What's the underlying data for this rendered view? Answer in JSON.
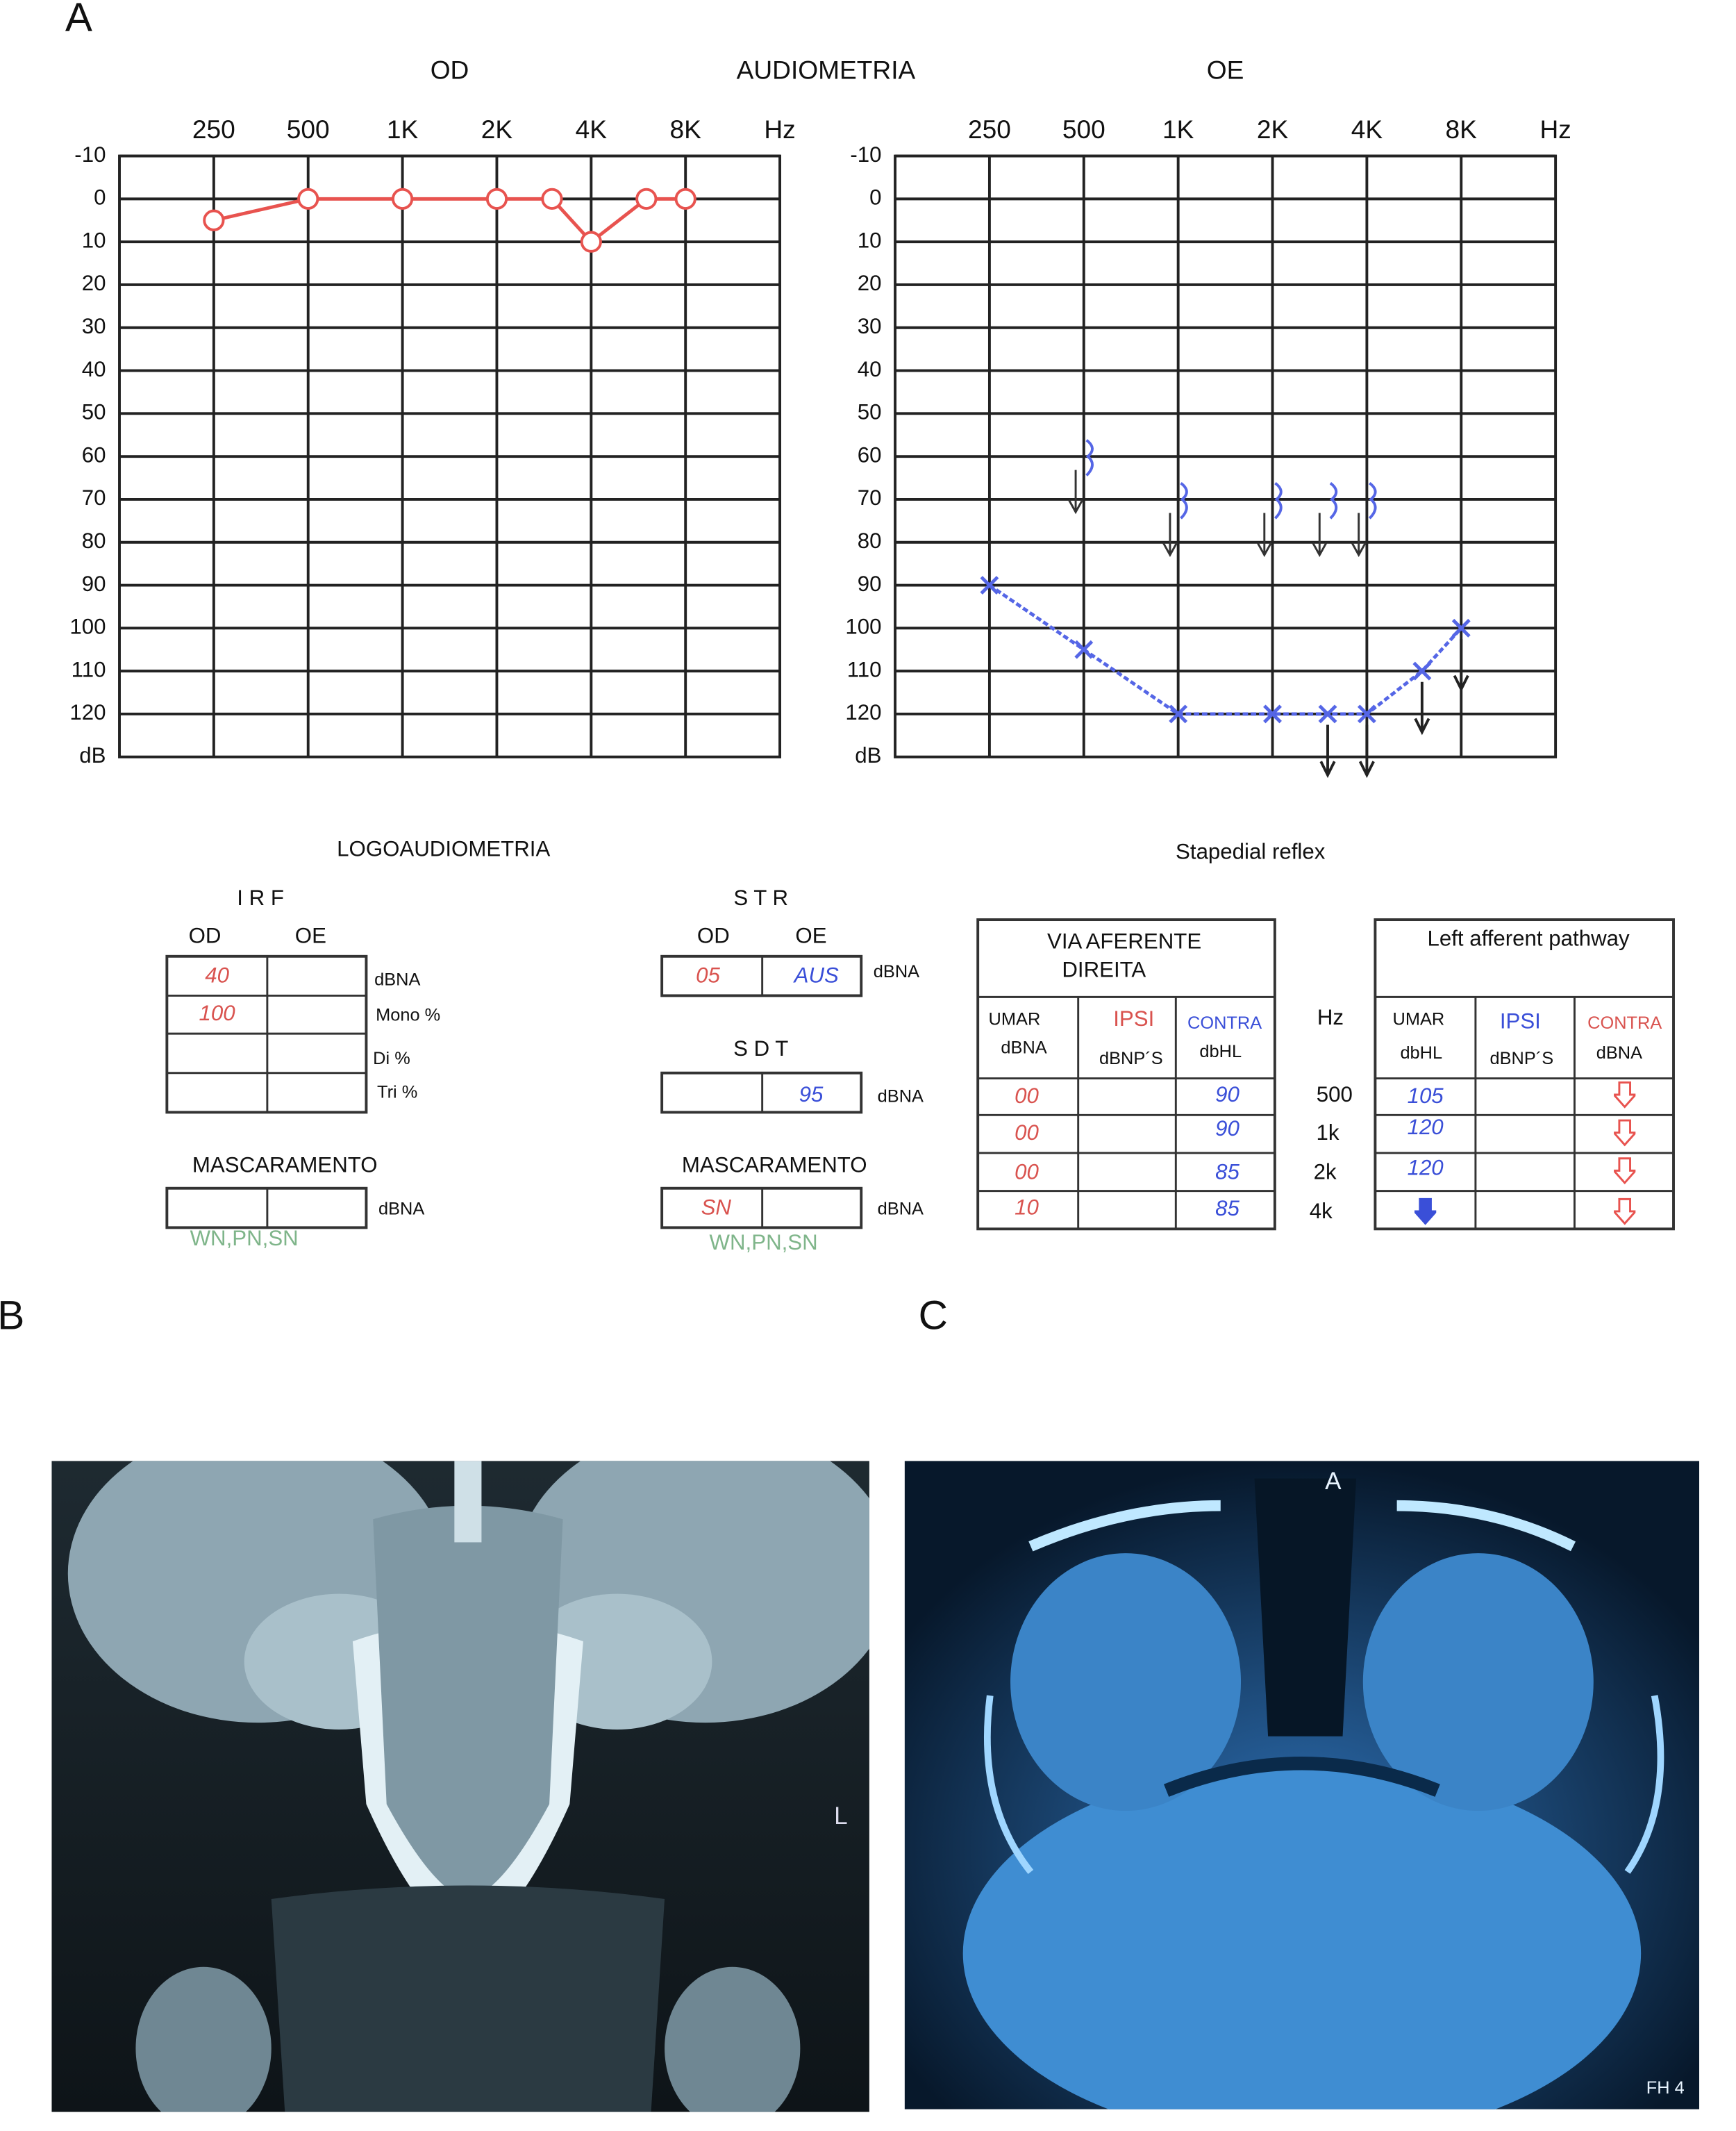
{
  "figure_labels": {
    "a": "A",
    "b": "B",
    "c": "C"
  },
  "title": "AUDIOMETRIA",
  "chart_data": [
    {
      "type": "line",
      "title": "OD",
      "x_label": "Hz",
      "y_label": "dB",
      "x_log": true,
      "x": [
        250,
        500,
        1000,
        2000,
        3000,
        4000,
        6000,
        8000
      ],
      "xlim": [
        125,
        16000
      ],
      "xticks": [
        250,
        500,
        {
          "value": 1000,
          "label": "1K"
        },
        {
          "value": 2000,
          "label": "2K"
        },
        {
          "value": 4000,
          "label": "4K"
        },
        {
          "value": 8000,
          "label": "8K"
        }
      ],
      "ylim": [
        -10,
        130
      ],
      "y_inverted": true,
      "yticks": [
        -10,
        0,
        10,
        20,
        30,
        40,
        50,
        60,
        70,
        80,
        90,
        100,
        110,
        120
      ],
      "grid": true,
      "series": [
        {
          "color": "#e8534f",
          "marker": "circle",
          "line": true,
          "values": [
            5,
            0,
            0,
            0,
            0,
            10,
            0,
            0
          ]
        }
      ]
    },
    {
      "type": "line",
      "title": "OE",
      "x_label": "Hz",
      "y_label": "dB",
      "x_log": true,
      "x": [
        250,
        500,
        1000,
        2000,
        3000,
        4000,
        6000,
        8000
      ],
      "xlim": [
        125,
        16000
      ],
      "xticks": [
        250,
        500,
        {
          "value": 1000,
          "label": "1K"
        },
        {
          "value": 2000,
          "label": "2K"
        },
        {
          "value": 4000,
          "label": "4K"
        },
        {
          "value": 8000,
          "label": "8K"
        }
      ],
      "ylim": [
        -10,
        130
      ],
      "y_inverted": true,
      "yticks": [
        -10,
        0,
        10,
        20,
        30,
        40,
        50,
        60,
        70,
        80,
        90,
        100,
        110,
        120
      ],
      "grid": true,
      "series": [
        {
          "color": "#5566e6",
          "marker": "x",
          "line": true,
          "dashed": true,
          "values": [
            90,
            105,
            120,
            120,
            120,
            120,
            110,
            100
          ],
          "no_response": [
            false,
            false,
            false,
            false,
            true,
            true,
            true,
            true
          ]
        },
        {
          "color": "#5566e6",
          "marker": "bracket",
          "line": false,
          "values": [
            null,
            60,
            70,
            70,
            70,
            70,
            null,
            null
          ]
        }
      ]
    }
  ],
  "logoaudiometria": {
    "title": "LOGOAUDIOMETRIA",
    "irf": {
      "title": "I R F",
      "columns": [
        "OD",
        "OE"
      ],
      "od": [
        "40",
        "100"
      ],
      "labels": [
        "dBNA",
        "Mono %",
        "Di %",
        "Tri %"
      ]
    },
    "masking_left": {
      "title": "MASCARAMENTO",
      "unit": "dBNA",
      "options": "WN,PN,SN"
    },
    "str": {
      "title": "S T R",
      "columns": [
        "OD",
        "OE"
      ],
      "od": "05",
      "oe": "AUS",
      "unit": "dBNA"
    },
    "sdt": {
      "title": "S D T",
      "oe": "95",
      "unit": "dBNA"
    },
    "masking_right": {
      "title": "MASCARAMENTO",
      "od": "SN",
      "unit": "dBNA",
      "options": "WN,PN,SN"
    }
  },
  "stapedial_reflex": {
    "title": "Stapedial reflex",
    "hz_label": "Hz",
    "frequencies": [
      "500",
      "1k",
      "2k",
      "4k"
    ],
    "right": {
      "header": [
        "VIA AFERENTE",
        "DIREITA"
      ],
      "columns": [
        {
          "name": "UMAR",
          "unit": "dBNA"
        },
        {
          "name": "IPSI",
          "unit": "dBNP´S"
        },
        {
          "name": "CONTRA",
          "unit": "dbHL"
        }
      ],
      "umar": [
        "00",
        "00",
        "00",
        "10"
      ],
      "contra": [
        "90",
        "90",
        "85",
        "85"
      ]
    },
    "left": {
      "header": "Left afferent pathway",
      "columns": [
        {
          "name": "UMAR",
          "unit": "dbHL"
        },
        {
          "name": "IPSI",
          "unit": "dBNP´S"
        },
        {
          "name": "CONTRA",
          "unit": "dBNA"
        }
      ],
      "umar": [
        "105",
        "120",
        "120"
      ]
    }
  },
  "images": {
    "b_side": "L",
    "c_top": "A",
    "c_corner": "FH 4"
  }
}
